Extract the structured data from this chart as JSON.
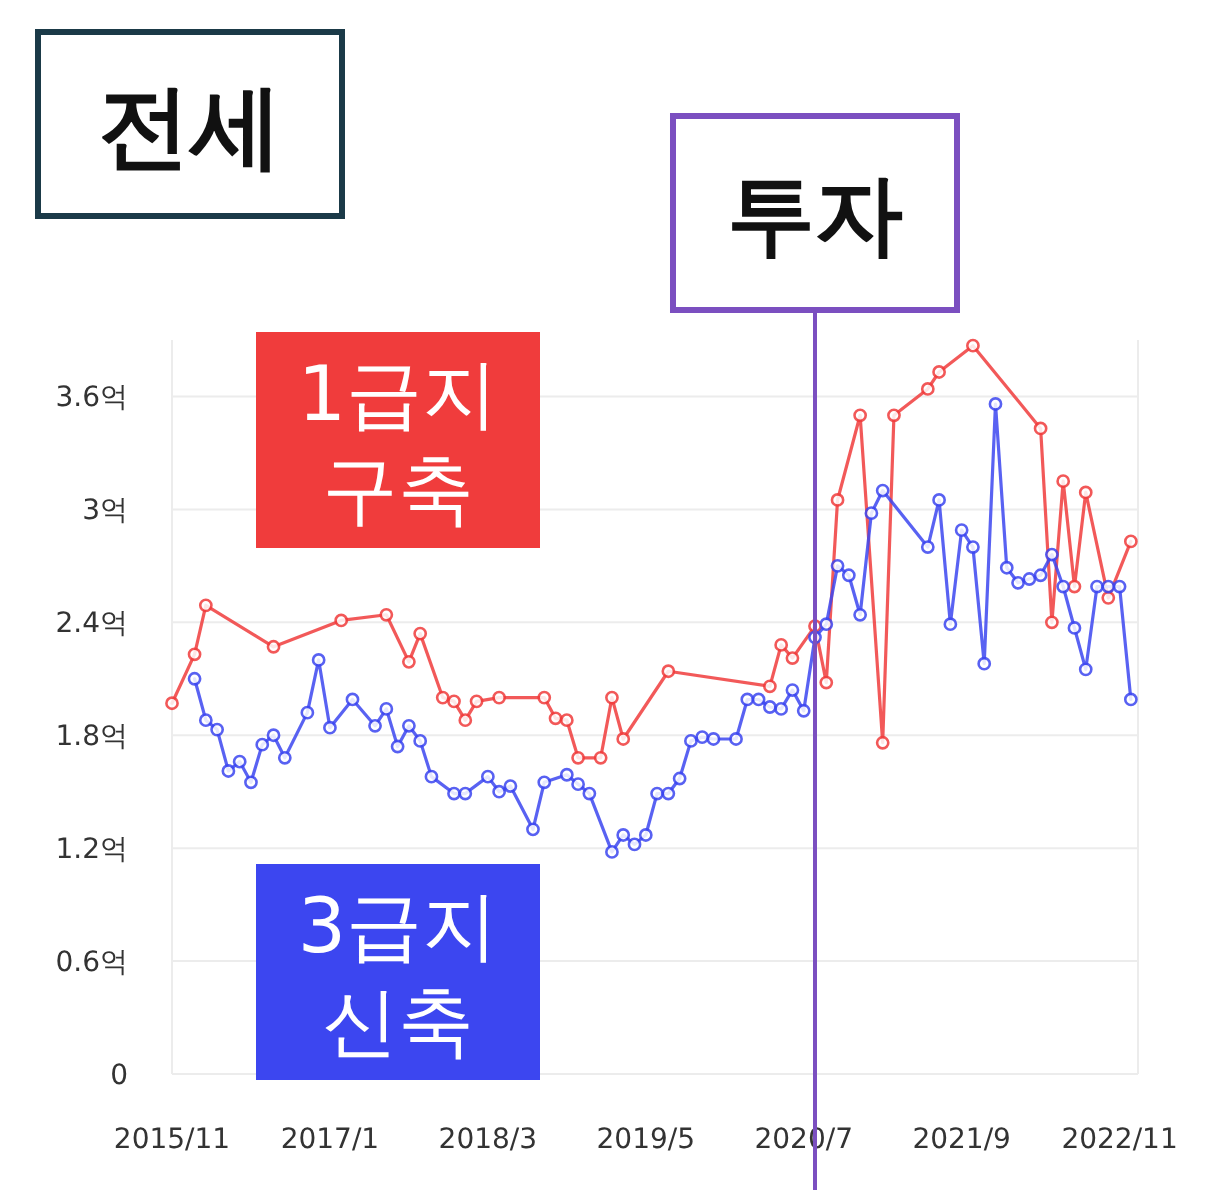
{
  "chart_data": {
    "type": "line",
    "title": "전세",
    "xlim": [
      "2015-11",
      "2022-12-20"
    ],
    "xticks": [
      {
        "value": "2015-11",
        "label": "2015/11"
      },
      {
        "value": "2017-01",
        "label": "2017/1"
      },
      {
        "value": "2018-03",
        "label": "2018/3"
      },
      {
        "value": "2019-05",
        "label": "2019/5"
      },
      {
        "value": "2020-07",
        "label": "2020/7"
      },
      {
        "value": "2021-09",
        "label": "2021/9"
      },
      {
        "value": "2022-11",
        "label": "2022/11"
      }
    ],
    "ylim": [
      0,
      3.9
    ],
    "yticks": [
      0,
      {
        "value": 0.6,
        "label": "0.6억"
      },
      {
        "value": 1.2,
        "label": "1.2억"
      },
      {
        "value": 1.8,
        "label": "1.8억"
      },
      {
        "value": 2.4,
        "label": "2.4억"
      },
      {
        "value": 3,
        "label": "3억"
      },
      {
        "value": 3.6,
        "label": "3.6억"
      }
    ],
    "grid": "y",
    "marker": "circle",
    "line_style": "solid",
    "legend": "left",
    "ref_lines": [
      {
        "axis": "x",
        "value": "2020-08",
        "label": "투자",
        "color": "#7b4fc0"
      }
    ],
    "series": [
      {
        "name": "1급지\n구축",
        "color": "#f03c3c",
        "x": [
          "2015-11",
          "2016-01",
          "2016-02",
          "2016-08",
          "2017-02",
          "2017-06",
          "2017-08",
          "2017-09",
          "2017-11",
          "2017-12",
          "2018-01",
          "2018-02",
          "2018-04",
          "2018-08",
          "2018-09",
          "2018-10",
          "2018-11",
          "2019-01",
          "2019-02",
          "2019-03",
          "2019-07",
          "2020-04",
          "2020-05",
          "2020-06",
          "2020-08",
          "2020-09",
          "2020-10",
          "2020-12",
          "2021-02",
          "2021-03",
          "2021-06",
          "2021-07",
          "2021-10",
          "2022-04",
          "2022-05",
          "2022-06",
          "2022-07",
          "2022-08",
          "2022-10",
          "2022-12"
        ],
        "values": [
          1.97,
          2.23,
          2.49,
          2.27,
          2.41,
          2.44,
          2.19,
          2.34,
          2.0,
          1.98,
          1.88,
          1.98,
          2.0,
          2.0,
          1.89,
          1.88,
          1.68,
          1.68,
          2.0,
          1.78,
          2.14,
          2.06,
          2.28,
          2.21,
          2.38,
          2.08,
          3.05,
          3.5,
          1.76,
          3.5,
          3.64,
          3.73,
          3.87,
          3.43,
          2.4,
          3.15,
          2.59,
          3.09,
          2.53,
          2.83
        ]
      },
      {
        "name": "3급지\n신축",
        "color": "#3c46f0",
        "x": [
          "2016-01",
          "2016-02",
          "2016-03",
          "2016-04",
          "2016-05",
          "2016-06",
          "2016-07",
          "2016-08",
          "2016-09",
          "2016-11",
          "2016-12",
          "2017-01",
          "2017-03",
          "2017-05",
          "2017-06",
          "2017-07",
          "2017-08",
          "2017-09",
          "2017-10",
          "2017-12",
          "2018-01",
          "2018-03",
          "2018-04",
          "2018-05",
          "2018-07",
          "2018-08",
          "2018-10",
          "2018-11",
          "2018-12",
          "2019-02",
          "2019-03",
          "2019-04",
          "2019-05",
          "2019-06",
          "2019-07",
          "2019-08",
          "2019-09",
          "2019-10",
          "2019-11",
          "2020-01",
          "2020-02",
          "2020-03",
          "2020-04",
          "2020-05",
          "2020-06",
          "2020-07",
          "2020-08",
          "2020-09",
          "2020-10",
          "2020-11",
          "2020-12",
          "2021-01",
          "2021-02",
          "2021-06",
          "2021-07",
          "2021-08",
          "2021-09",
          "2021-10",
          "2021-11",
          "2021-12",
          "2022-01",
          "2022-02",
          "2022-03",
          "2022-04",
          "2022-05",
          "2022-06",
          "2022-07",
          "2022-08",
          "2022-09",
          "2022-10",
          "2022-11",
          "2022-12"
        ],
        "values": [
          2.1,
          1.88,
          1.83,
          1.61,
          1.66,
          1.55,
          1.75,
          1.8,
          1.68,
          1.92,
          2.2,
          1.84,
          1.99,
          1.85,
          1.94,
          1.74,
          1.85,
          1.77,
          1.58,
          1.49,
          1.49,
          1.58,
          1.5,
          1.53,
          1.3,
          1.55,
          1.59,
          1.54,
          1.49,
          1.18,
          1.27,
          1.22,
          1.27,
          1.49,
          1.49,
          1.57,
          1.77,
          1.79,
          1.78,
          1.78,
          1.99,
          1.99,
          1.95,
          1.94,
          2.04,
          1.93,
          2.32,
          2.39,
          2.7,
          2.65,
          2.44,
          2.98,
          3.1,
          2.8,
          3.05,
          2.39,
          2.89,
          2.8,
          2.18,
          3.56,
          2.69,
          2.61,
          2.63,
          2.65,
          2.76,
          2.59,
          2.37,
          2.15,
          2.59,
          2.59,
          2.59,
          1.99
        ]
      }
    ]
  }
}
